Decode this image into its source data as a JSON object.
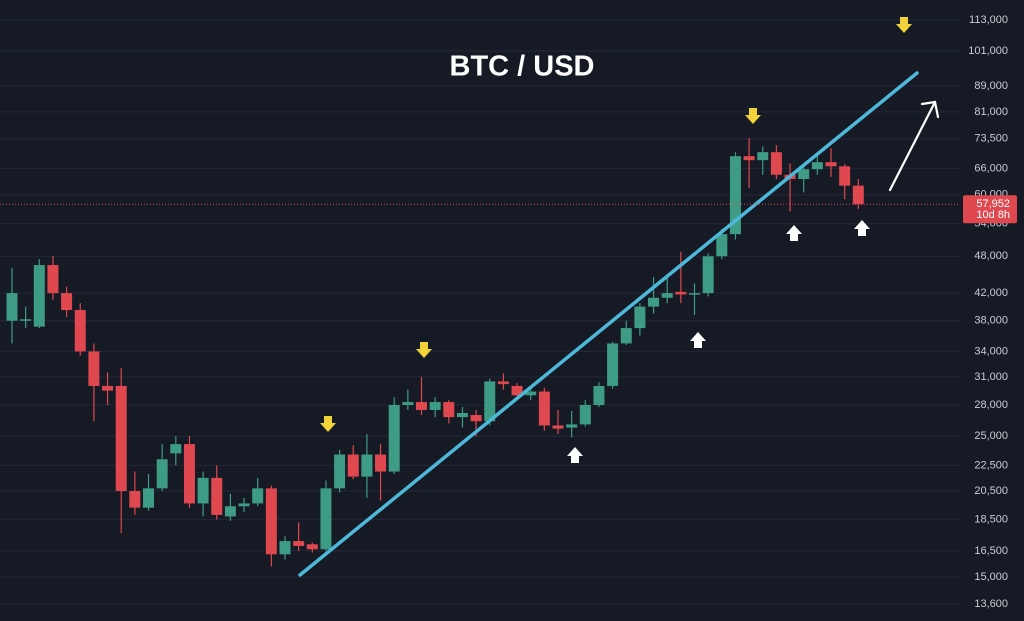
{
  "chart_data": {
    "type": "candlestick",
    "title": "BTC / USD",
    "log_scale": true,
    "grid": true,
    "up_color": "#3e9c84",
    "down_color": "#e0484f",
    "ylim": [
      12800,
      121500
    ],
    "yticks": [
      {
        "value": 113000,
        "label": "113,000"
      },
      {
        "value": 101000,
        "label": "101,000"
      },
      {
        "value": 89000,
        "label": "89,000"
      },
      {
        "value": 81000,
        "label": "81,000"
      },
      {
        "value": 73500,
        "label": "73,500"
      },
      {
        "value": 66000,
        "label": "66,000"
      },
      {
        "value": 60000,
        "label": "60,000"
      },
      {
        "value": 54000,
        "label": "54,000"
      },
      {
        "value": 48000,
        "label": "48,000"
      },
      {
        "value": 42000,
        "label": "42,000"
      },
      {
        "value": 38000,
        "label": "38,000"
      },
      {
        "value": 34000,
        "label": "34,000"
      },
      {
        "value": 31000,
        "label": "31,000"
      },
      {
        "value": 28000,
        "label": "28,000"
      },
      {
        "value": 25000,
        "label": "25,000"
      },
      {
        "value": 22500,
        "label": "22,500"
      },
      {
        "value": 20500,
        "label": "20,500"
      },
      {
        "value": 18500,
        "label": "18,500"
      },
      {
        "value": 16500,
        "label": "16,500"
      },
      {
        "value": 15000,
        "label": "15,000"
      },
      {
        "value": 13600,
        "label": "13,600"
      }
    ],
    "last_price": {
      "value": 57952,
      "label": "57,952"
    },
    "countdown": "10d 8h",
    "open": [
      38000,
      38000,
      37200,
      46500,
      42000,
      39500,
      34000,
      30000,
      30000,
      20500,
      19300,
      20700,
      23500,
      24300,
      19600,
      21500,
      18700,
      19400,
      19600,
      20700,
      16300,
      17100,
      16900,
      16600,
      20700,
      23400,
      21600,
      23400,
      22000,
      28000,
      28300,
      27500,
      28300,
      26800,
      27000,
      26400,
      30500,
      30000,
      29000,
      29400,
      26000,
      25800,
      26100,
      28000,
      30000,
      35000,
      37000,
      40000,
      41300,
      42200,
      41800,
      42000,
      48000,
      52000,
      69000,
      68000,
      70000,
      64500,
      63500,
      65800,
      67500,
      66500,
      62000
    ],
    "high": [
      46000,
      40000,
      47500,
      48000,
      43000,
      40500,
      35000,
      31500,
      32000,
      22000,
      21800,
      24300,
      25000,
      25000,
      22000,
      22500,
      20300,
      20000,
      21500,
      20900,
      17400,
      18300,
      17000,
      21300,
      23800,
      24200,
      25200,
      24300,
      28800,
      29600,
      31000,
      28800,
      28500,
      27800,
      27500,
      30800,
      31400,
      30300,
      30000,
      29800,
      27500,
      27400,
      28500,
      30400,
      35200,
      38000,
      40500,
      44500,
      44700,
      48800,
      43500,
      48500,
      53000,
      70000,
      73700,
      71500,
      71800,
      67200,
      66500,
      69500,
      71000,
      67000,
      63500
    ],
    "low": [
      35000,
      37000,
      37000,
      41000,
      38500,
      33500,
      26400,
      28000,
      17600,
      18800,
      19100,
      20500,
      22500,
      19300,
      18700,
      18500,
      18400,
      19000,
      19400,
      15600,
      16000,
      16500,
      16400,
      16500,
      20400,
      21400,
      20000,
      19800,
      21800,
      27500,
      27000,
      26800,
      26200,
      25800,
      25000,
      26000,
      29600,
      28900,
      28500,
      25500,
      25200,
      24900,
      25900,
      27800,
      29700,
      34800,
      36000,
      39000,
      40500,
      40500,
      38800,
      41500,
      47500,
      51000,
      61500,
      64500,
      63500,
      56500,
      60500,
      64500,
      64000,
      59000,
      57000
    ],
    "close": [
      42000,
      38200,
      46500,
      42000,
      39500,
      34000,
      30000,
      29500,
      20500,
      19300,
      20700,
      23000,
      24300,
      19600,
      21500,
      18800,
      19400,
      19600,
      20700,
      16300,
      17100,
      16800,
      16600,
      20700,
      23400,
      21600,
      23400,
      22000,
      28000,
      28300,
      27500,
      28300,
      26800,
      27200,
      26400,
      30500,
      30200,
      29000,
      29400,
      26000,
      25700,
      26100,
      28000,
      30000,
      35000,
      37000,
      40000,
      41300,
      42000,
      41800,
      42000,
      48000,
      52000,
      69000,
      68000,
      70000,
      64500,
      63500,
      65800,
      67500,
      66500,
      62000,
      57952
    ]
  }
}
